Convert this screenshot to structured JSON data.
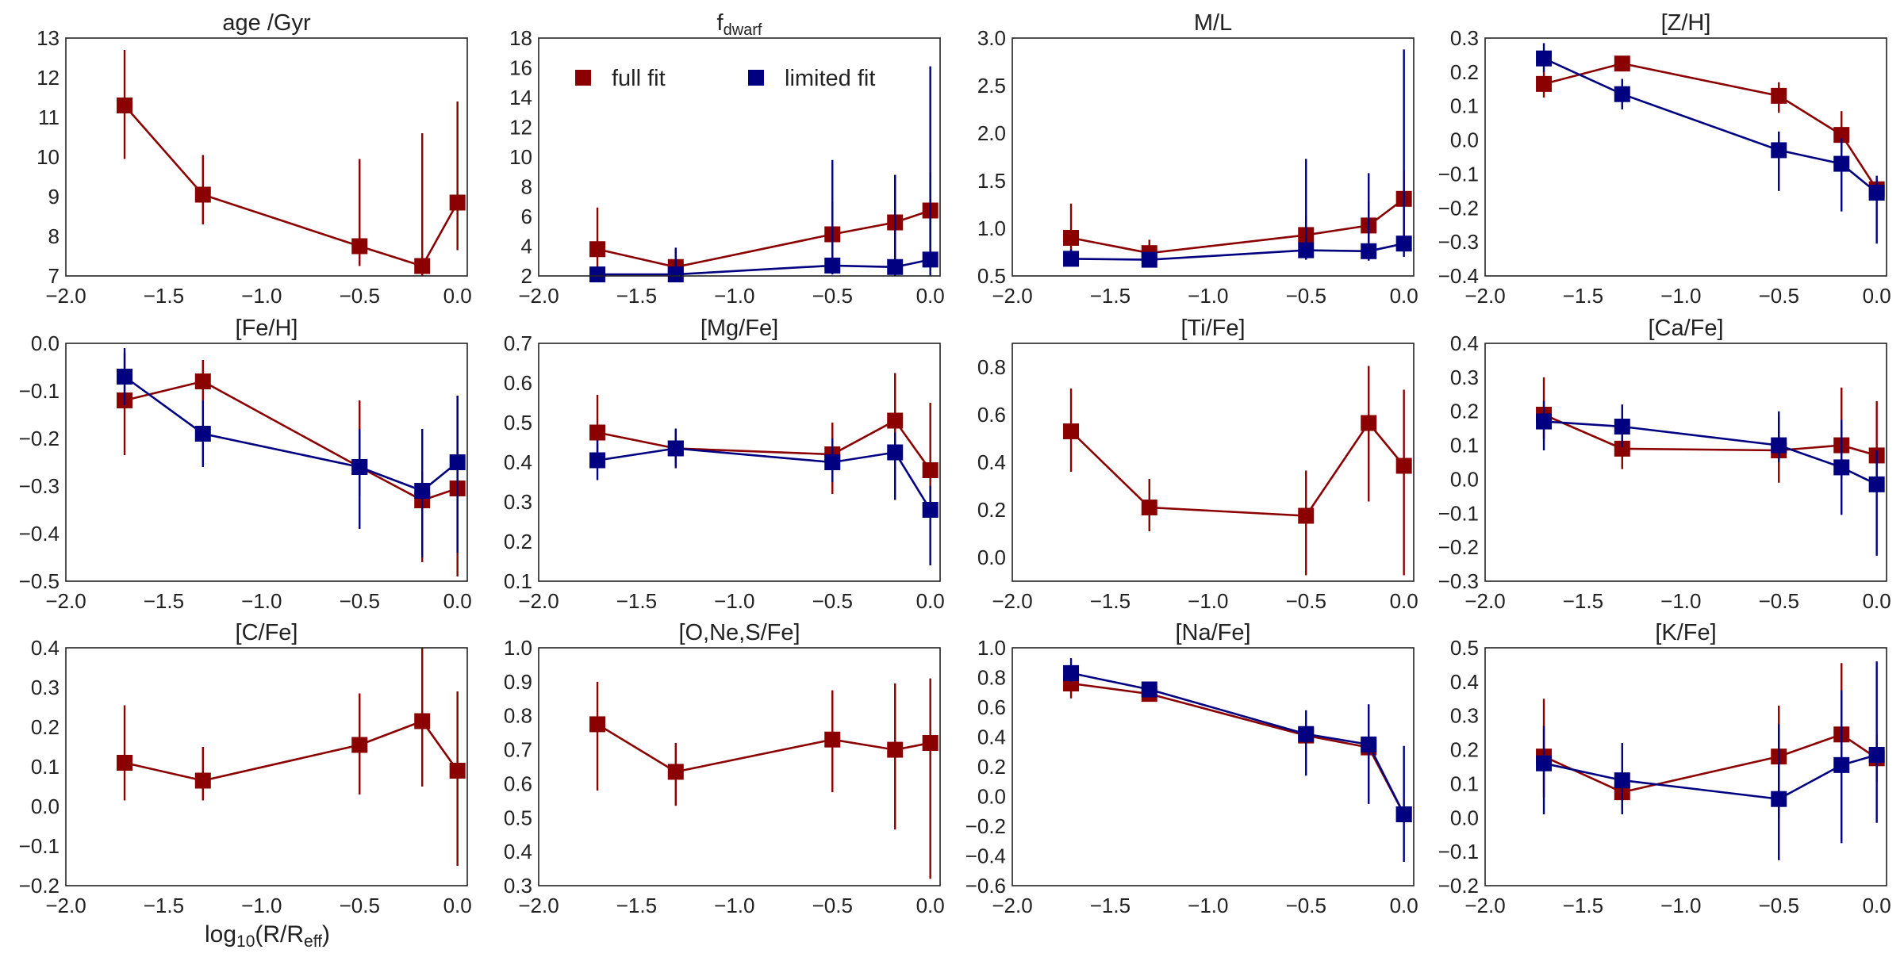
{
  "figure": {
    "colors": {
      "full": "#8b0000",
      "limited": "#000080"
    },
    "legend": [
      {
        "key": "full",
        "label": "full fit"
      },
      {
        "key": "limited",
        "label": "limited fit"
      }
    ],
    "xlabel": {
      "main": "log",
      "sub1": "10",
      "mid": "(R/R",
      "sub2": "eff",
      "end": ")"
    }
  },
  "chart_data": [
    {
      "type": "line",
      "title": "age /Gyr",
      "ylim": [
        7,
        13
      ],
      "yticks": [
        "7",
        "8",
        "9",
        "10",
        "11",
        "12",
        "13"
      ],
      "xlim": [
        -2.0,
        0.05
      ],
      "xticks": [
        "−2.0",
        "−1.5",
        "−1.0",
        "−0.5",
        "0.0"
      ],
      "x": [
        -1.7,
        -1.3,
        -0.5,
        -0.18,
        0.0
      ],
      "series": [
        {
          "name": "full fit",
          "key": "full",
          "values": [
            11.3,
            9.05,
            7.75,
            7.25,
            8.85
          ],
          "err_low": [
            1.35,
            0.75,
            0.5,
            0.25,
            1.2
          ],
          "err_high": [
            1.4,
            1.0,
            2.2,
            3.35,
            2.55
          ]
        }
      ]
    },
    {
      "type": "line",
      "title": "f",
      "title_sub": "dwarf",
      "legend": true,
      "ylim": [
        2,
        18
      ],
      "yticks": [
        "2",
        "4",
        "6",
        "8",
        "10",
        "12",
        "14",
        "16",
        "18"
      ],
      "xlim": [
        -2.0,
        0.05
      ],
      "xticks": [
        "−2.0",
        "−1.5",
        "−1.0",
        "−0.5",
        "0.0"
      ],
      "x": [
        -1.7,
        -1.3,
        -0.5,
        -0.18,
        0.0
      ],
      "series": [
        {
          "name": "full fit",
          "key": "full",
          "values": [
            3.8,
            2.6,
            4.8,
            5.6,
            6.4
          ],
          "err_low": [
            1.6,
            0.5,
            2.4,
            3.2,
            3.8
          ],
          "err_high": [
            2.8,
            1.2,
            2.2,
            3.2,
            2.6
          ]
        },
        {
          "name": "limited fit",
          "key": "limited",
          "values": [
            2.1,
            2.1,
            2.7,
            2.6,
            3.1
          ],
          "err_low": [
            0.1,
            0.1,
            0.6,
            0.6,
            1.1
          ],
          "err_high": [
            0.5,
            1.8,
            7.1,
            6.2,
            13.0
          ]
        }
      ]
    },
    {
      "type": "line",
      "title": "M/L",
      "ylim": [
        0.5,
        3.0
      ],
      "yticks": [
        "0.5",
        "1.0",
        "1.5",
        "2.0",
        "2.5",
        "3.0"
      ],
      "xlim": [
        -2.0,
        0.05
      ],
      "xticks": [
        "−2.0",
        "−1.5",
        "−1.0",
        "−0.5",
        "0.0"
      ],
      "x": [
        -1.7,
        -1.3,
        -0.5,
        -0.18,
        0.0
      ],
      "series": [
        {
          "name": "full fit",
          "key": "full",
          "values": [
            0.9,
            0.74,
            0.93,
            1.03,
            1.31
          ],
          "err_low": [
            0.18,
            0.06,
            0.2,
            0.25,
            0.5
          ],
          "err_high": [
            0.36,
            0.14,
            0.2,
            0.25,
            0.3
          ]
        },
        {
          "name": "limited fit",
          "key": "limited",
          "values": [
            0.68,
            0.67,
            0.77,
            0.76,
            0.84
          ],
          "err_low": [
            0.05,
            0.05,
            0.1,
            0.1,
            0.14
          ],
          "err_high": [
            0.1,
            0.08,
            0.96,
            0.82,
            2.04
          ]
        }
      ]
    },
    {
      "type": "line",
      "title": "[Z/H]",
      "ylim": [
        -0.4,
        0.3
      ],
      "yticks": [
        "−0.4",
        "−0.3",
        "−0.2",
        "−0.1",
        "0.0",
        "0.1",
        "0.2",
        "0.3"
      ],
      "xlim": [
        -2.0,
        0.05
      ],
      "xticks": [
        "−2.0",
        "−1.5",
        "−1.0",
        "−0.5",
        "0.0"
      ],
      "x": [
        -1.7,
        -1.3,
        -0.5,
        -0.18,
        0.0
      ],
      "series": [
        {
          "name": "full fit",
          "key": "full",
          "values": [
            0.165,
            0.225,
            0.13,
            0.015,
            -0.145
          ],
          "err_low": [
            0.04,
            0.015,
            0.05,
            0.05,
            0.03
          ],
          "err_high": [
            0.04,
            0.015,
            0.04,
            0.07,
            0.03
          ]
        },
        {
          "name": "limited fit",
          "key": "limited",
          "values": [
            0.24,
            0.135,
            -0.03,
            -0.07,
            -0.155
          ],
          "err_low": [
            0.04,
            0.045,
            0.12,
            0.14,
            0.15
          ],
          "err_high": [
            0.045,
            0.045,
            0.055,
            0.075,
            0.05
          ]
        }
      ]
    },
    {
      "type": "line",
      "title": "[Fe/H]",
      "ylim": [
        -0.5,
        0.0
      ],
      "yticks": [
        "−0.5",
        "−0.4",
        "−0.3",
        "−0.2",
        "−0.1",
        "0.0"
      ],
      "xlim": [
        -2.0,
        0.05
      ],
      "xticks": [
        "−2.0",
        "−1.5",
        "−1.0",
        "−0.5",
        "0.0"
      ],
      "x": [
        -1.7,
        -1.3,
        -0.5,
        -0.18,
        0.0
      ],
      "series": [
        {
          "name": "full fit",
          "key": "full",
          "values": [
            -0.12,
            -0.08,
            -0.26,
            -0.33,
            -0.305
          ],
          "err_low": [
            0.115,
            0.04,
            0.06,
            0.13,
            0.185
          ],
          "err_high": [
            0.1,
            0.045,
            0.14,
            0.06,
            0.195
          ]
        },
        {
          "name": "limited fit",
          "key": "limited",
          "values": [
            -0.07,
            -0.19,
            -0.26,
            -0.31,
            -0.25
          ],
          "err_low": [
            0.06,
            0.07,
            0.13,
            0.14,
            0.19
          ],
          "err_high": [
            0.06,
            0.07,
            0.08,
            0.13,
            0.14
          ]
        }
      ]
    },
    {
      "type": "line",
      "title": "[Mg/Fe]",
      "ylim": [
        0.1,
        0.7
      ],
      "yticks": [
        "0.1",
        "0.2",
        "0.3",
        "0.4",
        "0.5",
        "0.6",
        "0.7"
      ],
      "xlim": [
        -2.0,
        0.05
      ],
      "xticks": [
        "−2.0",
        "−1.5",
        "−1.0",
        "−0.5",
        "0.0"
      ],
      "x": [
        -1.7,
        -1.3,
        -0.5,
        -0.18,
        0.0
      ],
      "series": [
        {
          "name": "full fit",
          "key": "full",
          "values": [
            0.475,
            0.435,
            0.42,
            0.505,
            0.38
          ],
          "err_low": [
            0.075,
            0.045,
            0.1,
            0.095,
            0.1
          ],
          "err_high": [
            0.095,
            0.045,
            0.08,
            0.12,
            0.17
          ]
        },
        {
          "name": "limited fit",
          "key": "limited",
          "values": [
            0.405,
            0.435,
            0.4,
            0.425,
            0.28
          ],
          "err_low": [
            0.05,
            0.05,
            0.05,
            0.12,
            0.14
          ],
          "err_high": [
            0.05,
            0.05,
            0.06,
            0.05,
            0.06
          ]
        }
      ]
    },
    {
      "type": "line",
      "title": "[Ti/Fe]",
      "ylim": [
        -0.1,
        0.9
      ],
      "yticks": [
        "0.0",
        "0.2",
        "0.4",
        "0.6",
        "0.8"
      ],
      "xlim": [
        -2.0,
        0.05
      ],
      "xticks": [
        "−2.0",
        "−1.5",
        "−1.0",
        "−0.5",
        "0.0"
      ],
      "x": [
        -1.7,
        -1.3,
        -0.5,
        -0.18,
        0.0
      ],
      "series": [
        {
          "name": "full fit",
          "key": "full",
          "values": [
            0.53,
            0.21,
            0.175,
            0.565,
            0.385
          ],
          "err_low": [
            0.17,
            0.1,
            0.25,
            0.33,
            0.46
          ],
          "err_high": [
            0.18,
            0.12,
            0.19,
            0.24,
            0.32
          ]
        }
      ]
    },
    {
      "type": "line",
      "title": "[Ca/Fe]",
      "ylim": [
        -0.3,
        0.4
      ],
      "yticks": [
        "−0.3",
        "−0.2",
        "−0.1",
        "0.0",
        "0.1",
        "0.2",
        "0.3",
        "0.4"
      ],
      "xlim": [
        -2.0,
        0.05
      ],
      "xticks": [
        "−2.0",
        "−1.5",
        "−1.0",
        "−0.5",
        "0.0"
      ],
      "x": [
        -1.7,
        -1.3,
        -0.5,
        -0.18,
        0.0
      ],
      "series": [
        {
          "name": "full fit",
          "key": "full",
          "values": [
            0.19,
            0.09,
            0.085,
            0.1,
            0.07
          ],
          "err_low": [
            0.07,
            0.06,
            0.095,
            0.1,
            0.1
          ],
          "err_high": [
            0.11,
            0.06,
            0.1,
            0.17,
            0.16
          ]
        },
        {
          "name": "limited fit",
          "key": "limited",
          "values": [
            0.17,
            0.155,
            0.1,
            0.035,
            -0.015
          ],
          "err_low": [
            0.085,
            0.06,
            0.05,
            0.14,
            0.21
          ],
          "err_high": [
            0.06,
            0.065,
            0.1,
            0.14,
            0.1
          ]
        }
      ]
    },
    {
      "type": "line",
      "title": "[C/Fe]",
      "ylim": [
        -0.2,
        0.4
      ],
      "yticks": [
        "−0.2",
        "−0.1",
        "0.0",
        "0.1",
        "0.2",
        "0.3",
        "0.4"
      ],
      "xlim": [
        -2.0,
        0.05
      ],
      "xticks": [
        "−2.0",
        "−1.5",
        "−1.0",
        "−0.5",
        "0.0"
      ],
      "x": [
        -1.7,
        -1.3,
        -0.5,
        -0.18,
        0.0
      ],
      "series": [
        {
          "name": "full fit",
          "key": "full",
          "values": [
            0.11,
            0.065,
            0.155,
            0.215,
            0.09
          ],
          "err_low": [
            0.095,
            0.05,
            0.125,
            0.165,
            0.24
          ],
          "err_high": [
            0.145,
            0.085,
            0.13,
            0.185,
            0.2
          ]
        }
      ]
    },
    {
      "type": "line",
      "title": "[O,Ne,S/Fe]",
      "ylim": [
        0.3,
        1.0
      ],
      "yticks": [
        "0.3",
        "0.4",
        "0.5",
        "0.6",
        "0.7",
        "0.8",
        "0.9",
        "1.0"
      ],
      "xlim": [
        -2.0,
        0.05
      ],
      "xticks": [
        "−2.0",
        "−1.5",
        "−1.0",
        "−0.5",
        "0.0"
      ],
      "x": [
        -1.7,
        -1.3,
        -0.5,
        -0.18,
        0.0
      ],
      "series": [
        {
          "name": "full fit",
          "key": "full",
          "values": [
            0.775,
            0.635,
            0.73,
            0.7,
            0.72
          ],
          "err_low": [
            0.195,
            0.1,
            0.155,
            0.235,
            0.4
          ],
          "err_high": [
            0.125,
            0.085,
            0.145,
            0.195,
            0.19
          ]
        }
      ]
    },
    {
      "type": "line",
      "title": "[Na/Fe]",
      "ylim": [
        -0.6,
        1.0
      ],
      "yticks": [
        "−0.6",
        "−0.4",
        "−0.2",
        "0.0",
        "0.2",
        "0.4",
        "0.6",
        "0.8",
        "1.0"
      ],
      "xlim": [
        -2.0,
        0.05
      ],
      "xticks": [
        "−2.0",
        "−1.5",
        "−1.0",
        "−0.5",
        "0.0"
      ],
      "x": [
        -1.7,
        -1.3,
        -0.5,
        -0.18,
        0.0
      ],
      "series": [
        {
          "name": "full fit",
          "key": "full",
          "values": [
            0.76,
            0.69,
            0.41,
            0.33,
            -0.12
          ],
          "err_low": [
            0.1,
            0.05,
            0.05,
            0.05,
            0.05
          ],
          "err_high": [
            0.1,
            0.05,
            0.05,
            0.05,
            0.05
          ]
        },
        {
          "name": "limited fit",
          "key": "limited",
          "values": [
            0.83,
            0.72,
            0.42,
            0.35,
            -0.12
          ],
          "err_low": [
            0.06,
            0.04,
            0.28,
            0.4,
            0.32
          ],
          "err_high": [
            0.1,
            0.04,
            0.16,
            0.27,
            0.46
          ]
        }
      ]
    },
    {
      "type": "line",
      "title": "[K/Fe]",
      "ylim": [
        -0.2,
        0.5
      ],
      "yticks": [
        "−0.2",
        "−0.1",
        "0.0",
        "0.1",
        "0.2",
        "0.3",
        "0.4",
        "0.5"
      ],
      "xlim": [
        -2.0,
        0.05
      ],
      "xticks": [
        "−2.0",
        "−1.5",
        "−1.0",
        "−0.5",
        "0.0"
      ],
      "x": [
        -1.7,
        -1.3,
        -0.5,
        -0.18,
        0.0
      ],
      "series": [
        {
          "name": "full fit",
          "key": "full",
          "values": [
            0.18,
            0.075,
            0.18,
            0.245,
            0.175
          ],
          "err_low": [
            0.12,
            0.05,
            0.18,
            0.08,
            0.07
          ],
          "err_high": [
            0.17,
            0.05,
            0.15,
            0.21,
            0.07
          ]
        },
        {
          "name": "limited fit",
          "key": "limited",
          "values": [
            0.16,
            0.11,
            0.055,
            0.155,
            0.185
          ],
          "err_low": [
            0.15,
            0.1,
            0.18,
            0.23,
            0.2
          ],
          "err_high": [
            0.11,
            0.11,
            0.22,
            0.22,
            0.275
          ]
        }
      ]
    }
  ]
}
